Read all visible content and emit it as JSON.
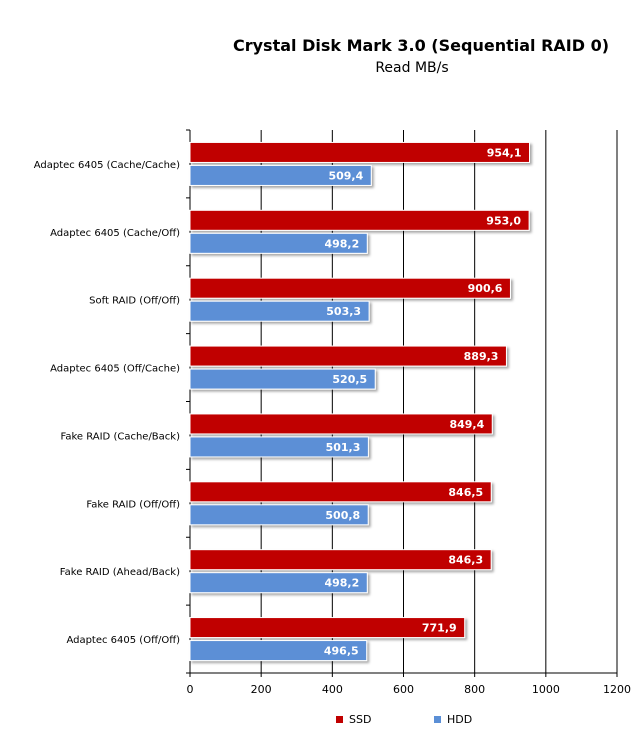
{
  "chart_data": {
    "type": "bar",
    "orientation": "horizontal",
    "title": "Crystal Disk Mark 3.0 (Sequential RAID 0)",
    "subtitle": "Read MB/s",
    "categories": [
      "Adaptec 6405  (Cache/Cache)",
      "Adaptec 6405  (Cache/Off)",
      "Soft RAID (Off/Off)",
      "Adaptec 6405  (Off/Cache)",
      "Fake RAID (Cache/Back)",
      "Fake RAID (Off/Off)",
      "Fake RAID (Ahead/Back)",
      "Adaptec 6405  (Off/Off)"
    ],
    "series": [
      {
        "name": "SSD",
        "color": "#c00000",
        "values": [
          954.1,
          953.0,
          900.6,
          889.3,
          849.4,
          846.5,
          846.3,
          771.9
        ],
        "labels": [
          "954,1",
          "953,0",
          "900,6",
          "889,3",
          "849,4",
          "846,5",
          "846,3",
          "771,9"
        ]
      },
      {
        "name": "HDD",
        "color": "#5b8fd6",
        "values": [
          509.4,
          498.2,
          503.3,
          520.5,
          501.3,
          500.8,
          498.2,
          496.5
        ],
        "labels": [
          "509,4",
          "498,2",
          "503,3",
          "520,5",
          "501,3",
          "500,8",
          "498,2",
          "496,5"
        ]
      }
    ],
    "xlim": [
      0,
      1200
    ],
    "xticks": [
      "0",
      "200",
      "400",
      "600",
      "800",
      "1000",
      "1200"
    ],
    "grid": true,
    "legend_position": "bottom"
  }
}
